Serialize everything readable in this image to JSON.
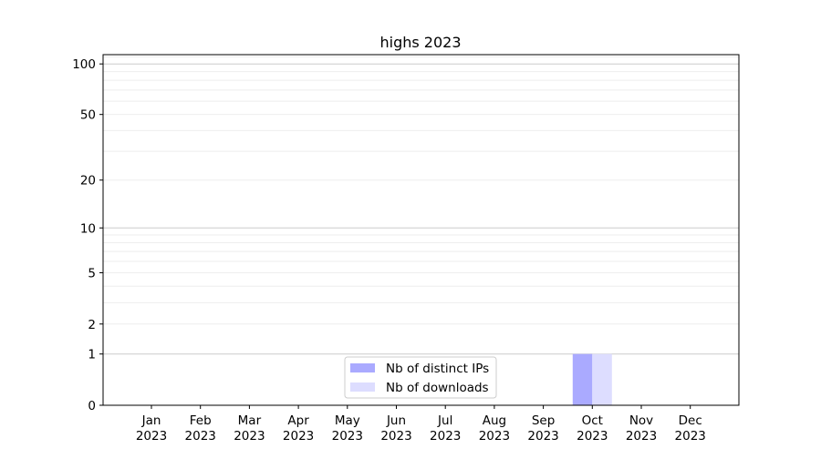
{
  "chart_data": {
    "type": "bar",
    "title": "highs 2023",
    "xlabel": "",
    "ylabel": "",
    "y_scale": "log(1+y)",
    "ylim": [
      0,
      113
    ],
    "y_ticks": [
      0,
      1,
      2,
      5,
      10,
      20,
      50,
      100
    ],
    "y_minor_ticks": [
      3,
      4,
      6,
      7,
      8,
      9,
      30,
      40,
      60,
      70,
      80,
      90
    ],
    "grid": true,
    "legend_position": "bottom-center",
    "categories": [
      [
        "Jan",
        "2023"
      ],
      [
        "Feb",
        "2023"
      ],
      [
        "Mar",
        "2023"
      ],
      [
        "Apr",
        "2023"
      ],
      [
        "May",
        "2023"
      ],
      [
        "Jun",
        "2023"
      ],
      [
        "Jul",
        "2023"
      ],
      [
        "Aug",
        "2023"
      ],
      [
        "Sep",
        "2023"
      ],
      [
        "Oct",
        "2023"
      ],
      [
        "Nov",
        "2023"
      ],
      [
        "Dec",
        "2023"
      ]
    ],
    "series": [
      {
        "name": "Nb of distinct IPs",
        "color": "#aaaaff",
        "values": [
          0,
          0,
          0,
          0,
          0,
          0,
          0,
          0,
          0,
          1,
          0,
          0
        ]
      },
      {
        "name": "Nb of downloads",
        "color": "#ddddff",
        "values": [
          0,
          0,
          0,
          0,
          0,
          0,
          0,
          0,
          0,
          1,
          0,
          0
        ]
      }
    ]
  }
}
